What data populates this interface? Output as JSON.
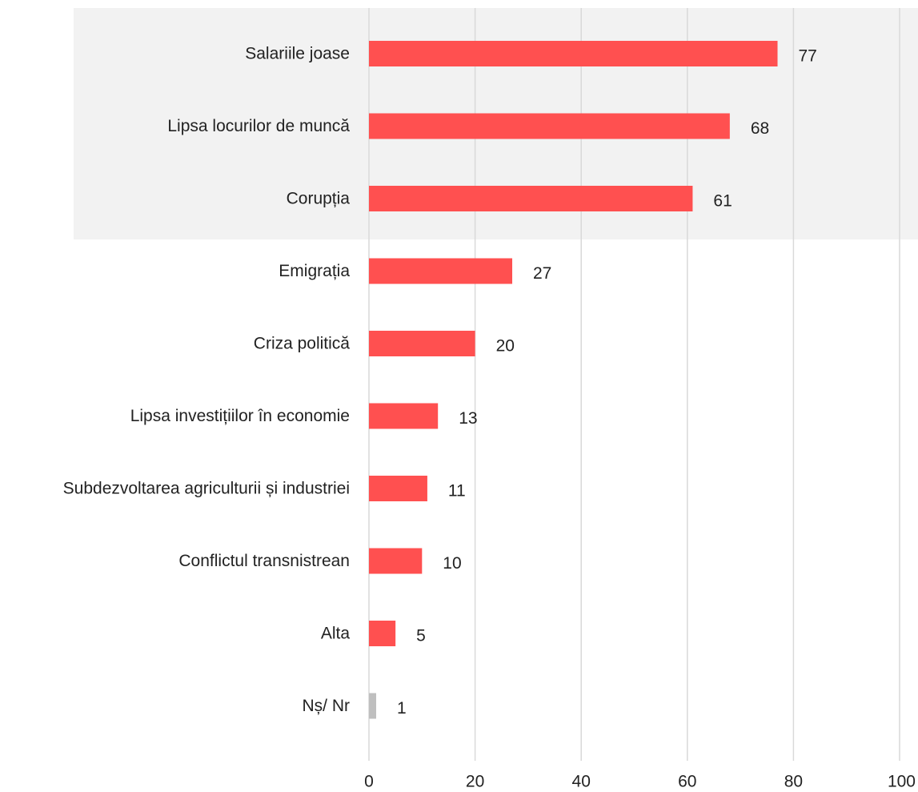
{
  "chart_data": {
    "type": "bar",
    "orientation": "horizontal",
    "categories": [
      "Salariile joase",
      "Lipsa locurilor de muncă",
      "Corupția",
      "Emigrația",
      "Criza politică",
      "Lipsa investițiilor în economie",
      "Subdezvoltarea agriculturii și industriei",
      "Conflictul transnistrean",
      "Alta",
      "Nș/ Nr"
    ],
    "values": [
      77,
      68,
      61,
      27,
      20,
      13,
      11,
      10,
      5,
      1
    ],
    "value_labels": [
      "77",
      "68",
      "61",
      "27",
      "20",
      "13",
      "11",
      "10",
      "5",
      "1"
    ],
    "highlighted_count": 3,
    "xlim": [
      0,
      100
    ],
    "xticks": [
      0,
      20,
      40,
      60,
      80,
      100
    ],
    "xtick_labels": [
      "0",
      "20",
      "40",
      "60",
      "80",
      "100"
    ],
    "grid": true,
    "colors": {
      "bar": "#ff5050",
      "bar_other": "#bfbfbf",
      "highlight_band": "#f2f2f2",
      "gridline": "#d9d9d9"
    }
  }
}
